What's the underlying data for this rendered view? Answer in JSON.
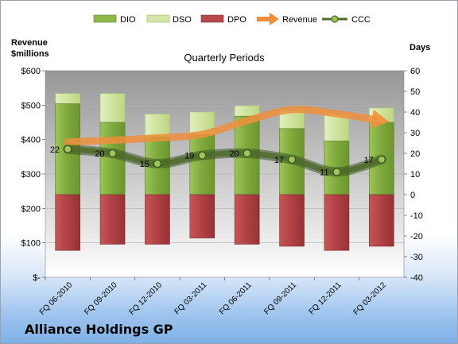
{
  "company": "Alliance Holdings GP",
  "chart_data": {
    "type": "bar",
    "title": "Quarterly Periods",
    "left_axis": {
      "label_line1": "Revenue",
      "label_line2": "$millions",
      "range": [
        0,
        600
      ],
      "ticks": [
        0,
        100,
        200,
        300,
        400,
        500,
        600
      ],
      "tick_labels": [
        "$-",
        "$100",
        "$200",
        "$300",
        "$400",
        "$500",
        "$600"
      ]
    },
    "right_axis": {
      "label": "Days",
      "range": [
        -40,
        60
      ],
      "ticks": [
        -40,
        -30,
        -20,
        -10,
        0,
        10,
        20,
        30,
        40,
        50,
        60
      ],
      "tick_labels": [
        "-40",
        "-30",
        "-20",
        "-10",
        "0",
        "10",
        "20",
        "30",
        "40",
        "50",
        "60"
      ]
    },
    "categories": [
      "FQ 06-2010",
      "FQ 09-2010",
      "FQ 12-2010",
      "FQ 03-2011",
      "FQ 06-2011",
      "FQ 09-2011",
      "FQ 12-2011",
      "FQ 03-2012"
    ],
    "series": [
      {
        "name": "DIO",
        "axis": "right",
        "values": [
          44,
          35,
          28,
          29,
          38,
          32,
          26,
          35
        ]
      },
      {
        "name": "DSO",
        "axis": "right",
        "values": [
          49,
          49,
          39,
          40,
          43,
          41,
          39,
          42
        ]
      },
      {
        "name": "DPO",
        "axis": "right",
        "values": [
          -27,
          -24,
          -24,
          -21,
          -24,
          -25,
          -27,
          -25
        ]
      },
      {
        "name": "Revenue",
        "axis": "left",
        "values": [
          393,
          398,
          405,
          415,
          455,
          487,
          475,
          455
        ]
      },
      {
        "name": "CCC",
        "axis": "right",
        "values": [
          22,
          20,
          15,
          19,
          20,
          17,
          11,
          17
        ]
      }
    ],
    "ccc_labels": [
      "22",
      "20",
      "15",
      "19",
      "20",
      "17",
      "11",
      "17"
    ],
    "legend_position": "top",
    "colors": {
      "DIO": "#8fb84a",
      "DSO": "#d4e7a8",
      "DPO": "#b8484a",
      "Revenue": "#ee8f3c",
      "CCC": "#4f6b2c",
      "plot_bg_top": "#969696",
      "plot_bg_bottom": "#ffffff"
    }
  }
}
